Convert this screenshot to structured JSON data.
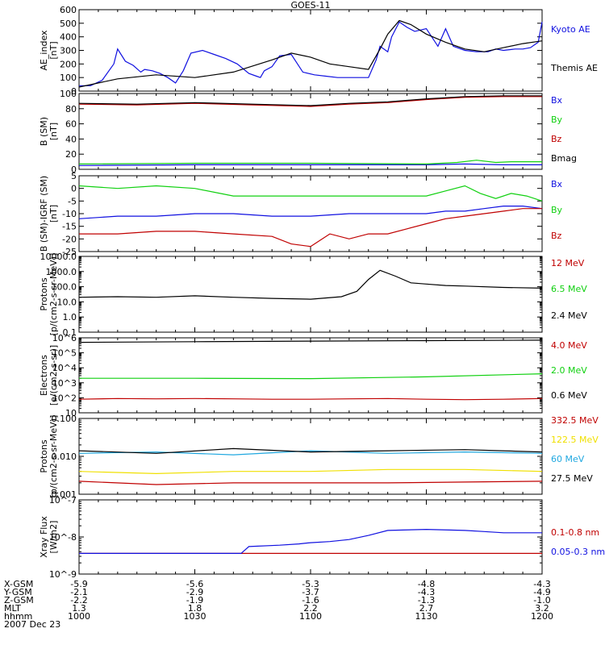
{
  "title": "GOES-11",
  "colors": {
    "black": "#000000",
    "blue": "#1010e0",
    "green": "#10d010",
    "red": "#c00000",
    "yellow": "#f0e000",
    "cyan": "#20a8e0"
  },
  "footer": {
    "rows": [
      {
        "label": "X-GSM",
        "values": [
          "-5.9",
          "-5.6",
          "-5.3",
          "-4.8",
          "-4.3"
        ]
      },
      {
        "label": "Y-GSM",
        "values": [
          "-2.1",
          "-2.9",
          "-3.7",
          "-4.3",
          "-4.9"
        ]
      },
      {
        "label": "Z-GSM",
        "values": [
          "-2.2",
          "-1.9",
          "-1.6",
          "-1.3",
          "-1.0"
        ]
      },
      {
        "label": "MLT",
        "values": [
          "1.3",
          "1.8",
          "2.2",
          "2.7",
          "3.2"
        ]
      },
      {
        "label": "hhmm",
        "values": [
          "1000",
          "1030",
          "1100",
          "1130",
          "1200"
        ]
      }
    ],
    "date": "2007 Dec 23"
  },
  "chart_data": [
    {
      "type": "line",
      "ylabel": "AE_index\n[nT]",
      "ylim": [
        0,
        600
      ],
      "yscale": "linear",
      "yticks": [
        "0",
        "100",
        "200",
        "300",
        "400",
        "500",
        "600"
      ],
      "x_range": [
        0,
        120
      ],
      "series": [
        {
          "name": "Kyoto AE",
          "color": "blue",
          "x": [
            0,
            3,
            6,
            9,
            10,
            12,
            14,
            16,
            17,
            19,
            21,
            23,
            25,
            27,
            29,
            32,
            35,
            38,
            41,
            44,
            46,
            47,
            48,
            50,
            52,
            55,
            58,
            61,
            64,
            67,
            70,
            73,
            75,
            77,
            78,
            80,
            81,
            83,
            85,
            87,
            90,
            93,
            95,
            97,
            100,
            103,
            106,
            108,
            110,
            113,
            115,
            117,
            119,
            120
          ],
          "y": [
            40,
            40,
            80,
            200,
            310,
            220,
            190,
            140,
            160,
            150,
            130,
            100,
            60,
            150,
            280,
            300,
            270,
            240,
            200,
            130,
            110,
            100,
            150,
            180,
            260,
            270,
            140,
            120,
            110,
            100,
            100,
            100,
            100,
            230,
            330,
            290,
            400,
            510,
            470,
            440,
            460,
            330,
            460,
            330,
            300,
            290,
            290,
            310,
            300,
            310,
            310,
            320,
            360,
            510
          ]
        },
        {
          "name": "Themis AE",
          "color": "black",
          "x": [
            0,
            10,
            20,
            30,
            40,
            50,
            55,
            60,
            65,
            70,
            75,
            78,
            80,
            83,
            86,
            90,
            95,
            100,
            105,
            110,
            115,
            120
          ],
          "y": [
            30,
            90,
            120,
            100,
            140,
            230,
            280,
            250,
            200,
            180,
            160,
            310,
            420,
            520,
            490,
            420,
            360,
            310,
            290,
            320,
            350,
            370
          ]
        }
      ]
    },
    {
      "type": "line",
      "ylabel": "B (SM)\n[nT]",
      "ylim": [
        0,
        100
      ],
      "yscale": "linear",
      "yticks": [
        "0",
        "20",
        "40",
        "60",
        "80",
        "100"
      ],
      "x_range": [
        0,
        120
      ],
      "series": [
        {
          "name": "Bx",
          "color": "blue",
          "x": [
            0,
            30,
            60,
            90,
            100,
            110,
            120
          ],
          "y": [
            5,
            6,
            6,
            6,
            7,
            6,
            6
          ]
        },
        {
          "name": "By",
          "color": "green",
          "x": [
            0,
            30,
            60,
            90,
            98,
            103,
            108,
            112,
            120
          ],
          "y": [
            7,
            8,
            8,
            7,
            9,
            12,
            9,
            10,
            10
          ]
        },
        {
          "name": "Bz",
          "color": "red",
          "x": [
            0,
            15,
            30,
            45,
            60,
            70,
            80,
            90,
            100,
            110,
            120
          ],
          "y": [
            86,
            85,
            87,
            85,
            83,
            86,
            88,
            92,
            95,
            96,
            96
          ]
        },
        {
          "name": "Bmag",
          "color": "black",
          "x": [
            0,
            15,
            30,
            45,
            60,
            70,
            80,
            90,
            100,
            110,
            120
          ],
          "y": [
            87,
            86,
            88,
            86,
            84,
            87,
            89,
            93,
            96,
            97,
            97
          ]
        }
      ]
    },
    {
      "type": "line",
      "ylabel": "B (SM)-IGRF (SM)\n[nT]",
      "ylim": [
        -25,
        5
      ],
      "yscale": "linear",
      "yticks": [
        "-25",
        "-20",
        "-15",
        "-10",
        "-5",
        "0",
        "5"
      ],
      "x_range": [
        0,
        120
      ],
      "series": [
        {
          "name": "Bx",
          "color": "blue",
          "x": [
            0,
            10,
            20,
            30,
            40,
            50,
            60,
            70,
            80,
            90,
            95,
            100,
            105,
            110,
            115,
            120
          ],
          "y": [
            -12,
            -11,
            -11,
            -10,
            -10,
            -11,
            -11,
            -10,
            -10,
            -10,
            -9,
            -9,
            -8,
            -7,
            -7,
            -8
          ]
        },
        {
          "name": "By",
          "color": "green",
          "x": [
            0,
            10,
            20,
            30,
            40,
            50,
            60,
            70,
            80,
            90,
            95,
            100,
            104,
            108,
            112,
            116,
            120
          ],
          "y": [
            1,
            0,
            1,
            0,
            -3,
            -3,
            -3,
            -3,
            -3,
            -3,
            -1,
            1,
            -2,
            -4,
            -2,
            -3,
            -5
          ]
        },
        {
          "name": "Bz",
          "color": "red",
          "x": [
            0,
            10,
            20,
            30,
            40,
            50,
            55,
            60,
            65,
            70,
            75,
            80,
            85,
            90,
            95,
            100,
            105,
            110,
            115,
            120
          ],
          "y": [
            -18,
            -18,
            -17,
            -17,
            -18,
            -19,
            -22,
            -23,
            -18,
            -20,
            -18,
            -18,
            -16,
            -14,
            -12,
            -11,
            -10,
            -9,
            -8,
            -8
          ]
        }
      ]
    },
    {
      "type": "line",
      "ylabel": "Protons\n[p/(cm2-s-sr-MeV)]",
      "ylim": [
        0.1,
        10000
      ],
      "yscale": "log",
      "yticks": [
        "0.1",
        "1.0",
        "10.0",
        "100.0",
        "1000.0",
        "10000.0"
      ],
      "x_range": [
        0,
        120
      ],
      "series": [
        {
          "name": "12 MeV",
          "color": "red",
          "x": [],
          "y": []
        },
        {
          "name": "6.5 MeV",
          "color": "green",
          "x": [],
          "y": []
        },
        {
          "name": "2.4 MeV",
          "color": "black",
          "x": [
            0,
            10,
            20,
            30,
            40,
            50,
            60,
            68,
            72,
            75,
            78,
            82,
            86,
            90,
            95,
            100,
            110,
            120
          ],
          "y": [
            20,
            22,
            20,
            25,
            20,
            17,
            15,
            22,
            50,
            300,
            1200,
            500,
            180,
            150,
            120,
            110,
            90,
            80
          ]
        }
      ]
    },
    {
      "type": "line",
      "ylabel": "Electrons\n[e/(cm2-s-sr)]",
      "ylim": [
        10,
        1000000
      ],
      "yscale": "log",
      "yticks": [
        "10",
        "10^2",
        "10^3",
        "10^4",
        "10^5",
        "10^6"
      ],
      "x_range": [
        0,
        120
      ],
      "series": [
        {
          "name": "4.0 MeV",
          "color": "red",
          "x": [
            0,
            10,
            20,
            30,
            40,
            50,
            60,
            70,
            80,
            90,
            100,
            110,
            120
          ],
          "y": [
            80,
            90,
            85,
            90,
            85,
            80,
            80,
            85,
            90,
            80,
            75,
            80,
            90
          ]
        },
        {
          "name": "2.0 MeV",
          "color": "green",
          "x": [
            0,
            30,
            60,
            90,
            120
          ],
          "y": [
            2000,
            2000,
            1900,
            2500,
            4000
          ]
        },
        {
          "name": "0.6 MeV",
          "color": "black",
          "x": [
            0,
            30,
            60,
            90,
            120
          ],
          "y": [
            500000,
            550000,
            600000,
            650000,
            700000
          ]
        }
      ]
    },
    {
      "type": "line",
      "ylabel": "Protons\n[p/(cm2-s-sr-MeV)]",
      "ylim": [
        0.001,
        0.1
      ],
      "yscale": "log",
      "yticks": [
        "0.001",
        "0.010",
        "0.100"
      ],
      "x_range": [
        0,
        120
      ],
      "series": [
        {
          "name": "332.5 MeV",
          "color": "red",
          "x": [
            0,
            20,
            40,
            60,
            80,
            100,
            120
          ],
          "y": [
            0.0022,
            0.0018,
            0.002,
            0.002,
            0.002,
            0.0021,
            0.0022
          ]
        },
        {
          "name": "122.5 MeV",
          "color": "yellow",
          "x": [
            0,
            20,
            40,
            60,
            80,
            100,
            120
          ],
          "y": [
            0.004,
            0.0035,
            0.004,
            0.004,
            0.0045,
            0.0045,
            0.004
          ]
        },
        {
          "name": "60 MeV",
          "color": "cyan",
          "x": [
            0,
            20,
            40,
            60,
            80,
            100,
            120
          ],
          "y": [
            0.012,
            0.013,
            0.011,
            0.014,
            0.012,
            0.013,
            0.012
          ]
        },
        {
          "name": "27.5 MeV",
          "color": "black",
          "x": [
            0,
            20,
            40,
            60,
            80,
            100,
            120
          ],
          "y": [
            0.014,
            0.012,
            0.016,
            0.013,
            0.014,
            0.015,
            0.013
          ]
        }
      ]
    },
    {
      "type": "line",
      "ylabel": "Xray Flux\n[W/m2]",
      "ylim": [
        1e-09,
        1e-07
      ],
      "yscale": "log",
      "yticks": [
        "10^-9",
        "10^-8",
        "10^-7"
      ],
      "x_range": [
        0,
        120
      ],
      "series": [
        {
          "name": "0.1-0.8 nm",
          "color": "red",
          "x": [
            0,
            120
          ],
          "y": [
            3.6e-09,
            3.6e-09
          ]
        },
        {
          "name": "0.05-0.3 nm",
          "color": "blue",
          "x": [
            0,
            42,
            44,
            52,
            57,
            60,
            65,
            70,
            75,
            80,
            90,
            100,
            105,
            110,
            120
          ],
          "y": [
            3.6e-09,
            3.6e-09,
            5.5e-09,
            6e-09,
            6.5e-09,
            7e-09,
            7.5e-09,
            8.5e-09,
            1.1e-08,
            1.5e-08,
            1.6e-08,
            1.5e-08,
            1.4e-08,
            1.3e-08,
            1.3e-08
          ]
        }
      ]
    }
  ]
}
